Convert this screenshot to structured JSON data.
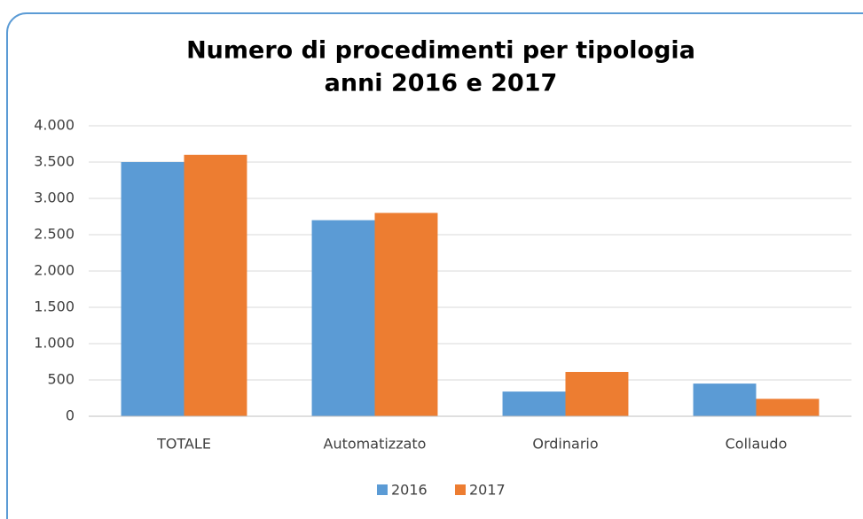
{
  "chart_data": {
    "type": "bar",
    "title": [
      "Numero di procedimenti per tipologia",
      "anni 2016 e 2017"
    ],
    "categories": [
      "TOTALE",
      "Automatizzato",
      "Ordinario",
      "Collaudo"
    ],
    "series": [
      {
        "name": "2016",
        "color": "#5b9bd5",
        "values": [
          3500,
          2700,
          340,
          450
        ]
      },
      {
        "name": "2017",
        "color": "#ed7d31",
        "values": [
          3600,
          2800,
          610,
          240
        ]
      }
    ],
    "ylim": [
      0,
      4000
    ],
    "yticks": [
      0,
      500,
      {
        "value": 1000,
        "label": "1.000"
      },
      {
        "value": 1500,
        "label": "1.500"
      },
      {
        "value": 2000,
        "label": "2.000"
      },
      {
        "value": 2500,
        "label": "2.500"
      },
      {
        "value": 3000,
        "label": "3.000"
      },
      {
        "value": 3500,
        "label": "3.500"
      },
      {
        "value": 4000,
        "label": "4.000"
      }
    ],
    "grid": true,
    "legend": "bottom"
  }
}
